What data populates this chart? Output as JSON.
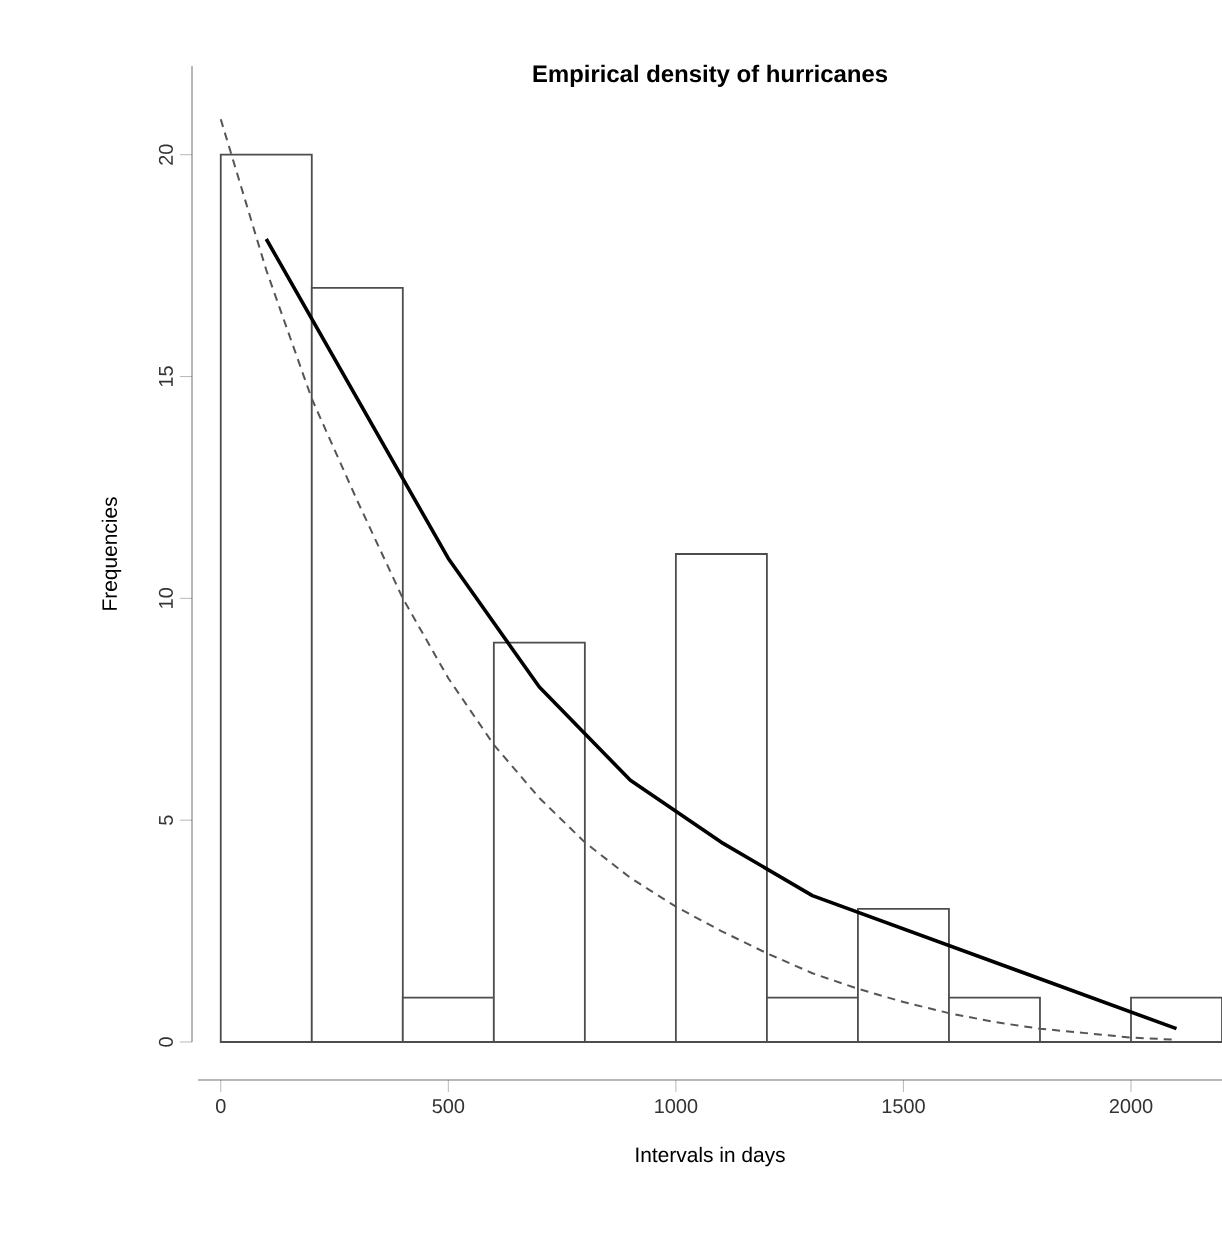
{
  "chart_data": {
    "type": "histogram",
    "title": "Empirical density of hurricanes",
    "xlabel": "Intervals in days",
    "ylabel": "Frequencies",
    "bins": [
      0,
      200,
      400,
      600,
      800,
      1000,
      1200,
      1400,
      1600,
      1800,
      2000,
      2200
    ],
    "values": [
      20,
      17,
      1,
      9,
      0,
      11,
      1,
      3,
      1,
      0,
      1
    ],
    "color": "#4d4d4d",
    "series": [
      {
        "type": "line",
        "color": "#000000",
        "line_style": "solid",
        "x": [
          100,
          300,
          500,
          700,
          900,
          1100,
          1300,
          1500,
          1700,
          1900,
          2100
        ],
        "values": [
          18.1,
          14.5,
          10.9,
          8.0,
          5.9,
          4.5,
          3.3,
          2.55,
          1.8,
          1.05,
          0.3
        ]
      },
      {
        "type": "line",
        "color": "#555555",
        "line_style": "dashed",
        "x": [
          0,
          100,
          200,
          300,
          400,
          500,
          600,
          700,
          800,
          900,
          1000,
          1100,
          1200,
          1300,
          1400,
          1500,
          1600,
          1700,
          1800,
          1900,
          2000,
          2100
        ],
        "values": [
          20.8,
          17.4,
          14.5,
          12.2,
          10.0,
          8.2,
          6.7,
          5.5,
          4.5,
          3.7,
          3.05,
          2.5,
          2.0,
          1.55,
          1.2,
          0.9,
          0.65,
          0.45,
          0.3,
          0.2,
          0.1,
          0.05
        ]
      }
    ],
    "xlim": [
      -50,
      2200
    ],
    "ylim": [
      0,
      22
    ],
    "xticks": [
      0,
      500,
      1000,
      1500,
      2000
    ],
    "yticks": [
      0,
      5,
      10,
      15,
      20
    ],
    "marker": "none"
  }
}
